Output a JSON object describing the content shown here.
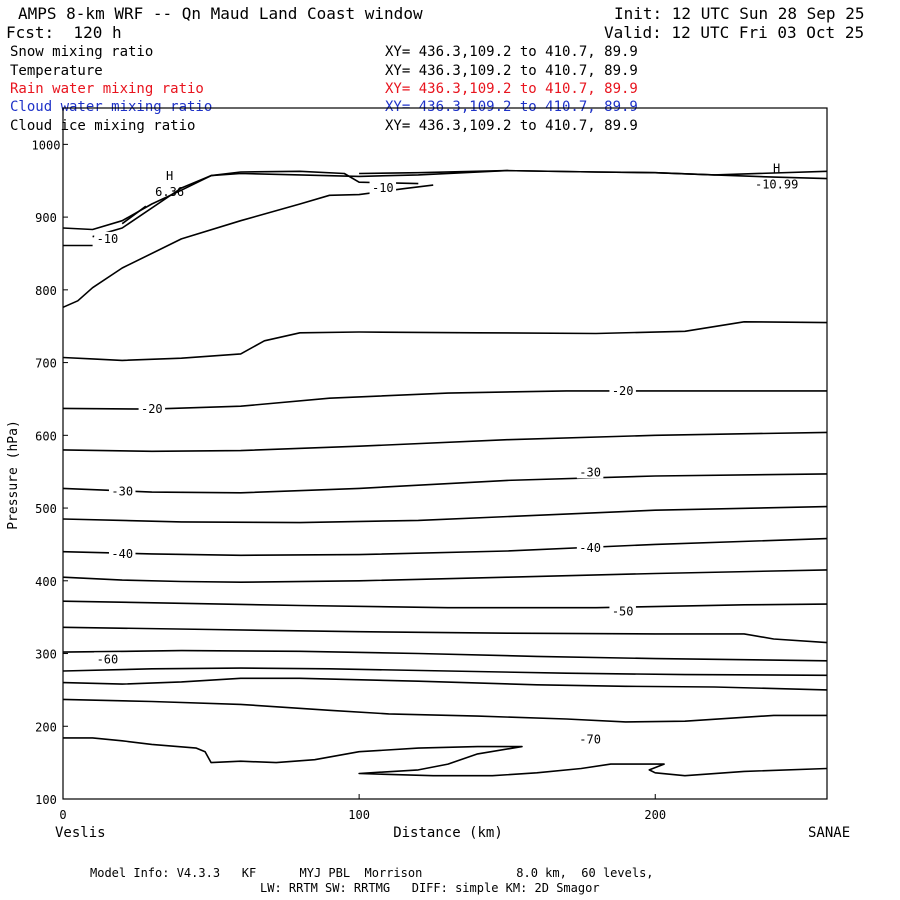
{
  "header": {
    "title": "AMPS 8-km WRF -- Qn Maud Land Coast window",
    "init": "Init: 12 UTC Sun 28 Sep 25",
    "forecast": "Fcst:  120 h",
    "valid": "Valid: 12 UTC Fri 03 Oct 25"
  },
  "fields": [
    {
      "name": "Snow mixing ratio",
      "xy": "XY= 436.3,109.2 to 410.7, 89.9",
      "color": "#000000"
    },
    {
      "name": "Temperature",
      "xy": "XY= 436.3,109.2 to 410.7, 89.9",
      "color": "#000000"
    },
    {
      "name": "Rain water mixing ratio",
      "xy": "XY= 436.3,109.2 to 410.7, 89.9",
      "color": "#e8141e"
    },
    {
      "name": "Cloud water mixing ratio",
      "xy": "XY= 436.3,109.2 to 410.7, 89.9",
      "color": "#1e32c8"
    },
    {
      "name": "Cloud ice mixing ratio",
      "xy": "XY= 436.3,109.2 to 410.7, 89.9",
      "color": "#000000"
    }
  ],
  "footer": {
    "line1": "Model Info: V4.3.3   KF      MYJ PBL  Morrison             8.0 km,  60 levels,",
    "line2": "LW: RRTM SW: RRTMG   DIFF: simple KM: 2D Smagor"
  },
  "chart_data": {
    "type": "contour",
    "title": "",
    "xlabel": "Distance (km)",
    "ylabel": "Pressure (hPa)",
    "xlim": [
      0,
      258
    ],
    "ylim": [
      1050,
      100
    ],
    "x_ticks": [
      0,
      100,
      200
    ],
    "y_ticks": [
      100,
      200,
      300,
      400,
      500,
      600,
      700,
      800,
      900,
      1000
    ],
    "endpoints": {
      "left": "Veslis",
      "right": "SANAE"
    },
    "contour_labels": [
      {
        "text": "-70",
        "x": 178,
        "p": 182
      },
      {
        "text": "-60",
        "x": 15,
        "p": 292
      },
      {
        "text": "-50",
        "x": 189,
        "p": 358
      },
      {
        "text": "-40",
        "x": 20,
        "p": 437
      },
      {
        "text": "-40",
        "x": 178,
        "p": 445
      },
      {
        "text": "-30",
        "x": 20,
        "p": 523
      },
      {
        "text": "-30",
        "x": 178,
        "p": 549
      },
      {
        "text": "-20",
        "x": 30,
        "p": 636
      },
      {
        "text": "-20",
        "x": 189,
        "p": 661
      },
      {
        "text": "-10",
        "x": 15,
        "p": 870
      },
      {
        "text": "-10",
        "x": 108,
        "p": 940
      }
    ],
    "extrema": [
      {
        "text": "H",
        "value": "6.36",
        "x": 36,
        "p": 940
      },
      {
        "text": "H",
        "value": "-10.99",
        "x": 241,
        "p": 950
      }
    ],
    "isotherms": [
      {
        "x": [
          0,
          10,
          20,
          30,
          45,
          48,
          50,
          60,
          72,
          85,
          100,
          120,
          140,
          155,
          140,
          130,
          120,
          100,
          125,
          145,
          160,
          175,
          185,
          195,
          203,
          198,
          200,
          210,
          230,
          258
        ],
        "p": [
          184,
          184,
          180,
          175,
          170,
          165,
          150,
          152,
          150,
          154,
          165,
          170,
          172,
          172,
          162,
          148,
          140,
          135,
          132,
          132,
          136,
          142,
          148,
          148,
          148,
          140,
          136,
          132,
          138,
          142
        ]
      },
      {
        "x": [
          0,
          30,
          60,
          90,
          110,
          140,
          170,
          190,
          210,
          240,
          258
        ],
        "p": [
          237,
          234,
          230,
          222,
          217,
          214,
          210,
          206,
          207,
          215,
          215
        ]
      },
      {
        "x": [
          0,
          20,
          40,
          60,
          80,
          120,
          160,
          190,
          220,
          258
        ],
        "p": [
          260,
          258,
          261,
          266,
          266,
          262,
          257,
          255,
          254,
          250
        ]
      },
      {
        "x": [
          0,
          30,
          60,
          90,
          130,
          170,
          210,
          258
        ],
        "p": [
          276,
          279,
          280,
          279,
          276,
          273,
          271,
          270
        ]
      },
      {
        "x": [
          0,
          40,
          80,
          120,
          160,
          200,
          258
        ],
        "p": [
          302,
          304,
          303,
          300,
          296,
          293,
          290
        ]
      },
      {
        "x": [
          0,
          50,
          100,
          150,
          200,
          230,
          240,
          258
        ],
        "p": [
          336,
          333,
          330,
          328,
          327,
          327,
          320,
          315
        ]
      },
      {
        "x": [
          0,
          40,
          80,
          130,
          180,
          230,
          258
        ],
        "p": [
          372,
          369,
          366,
          363,
          363,
          367,
          368
        ]
      },
      {
        "x": [
          0,
          20,
          40,
          60,
          100,
          150,
          200,
          258
        ],
        "p": [
          405,
          401,
          399,
          398,
          400,
          405,
          410,
          415
        ]
      },
      {
        "x": [
          0,
          30,
          60,
          100,
          150,
          200,
          258
        ],
        "p": [
          440,
          437,
          435,
          436,
          441,
          450,
          458
        ]
      },
      {
        "x": [
          0,
          40,
          80,
          120,
          160,
          200,
          258
        ],
        "p": [
          485,
          481,
          480,
          483,
          490,
          497,
          502
        ]
      },
      {
        "x": [
          0,
          30,
          60,
          100,
          150,
          200,
          258
        ],
        "p": [
          527,
          522,
          521,
          527,
          538,
          544,
          547
        ]
      },
      {
        "x": [
          0,
          30,
          60,
          100,
          150,
          200,
          258
        ],
        "p": [
          580,
          578,
          579,
          585,
          594,
          600,
          604
        ]
      },
      {
        "x": [
          0,
          30,
          60,
          90,
          130,
          170,
          210,
          258
        ],
        "p": [
          637,
          636,
          640,
          651,
          658,
          661,
          661,
          661
        ]
      },
      {
        "x": [
          0,
          10,
          20,
          40,
          60,
          68,
          80,
          100,
          140,
          180,
          210,
          230,
          258
        ],
        "p": [
          707,
          705,
          703,
          706,
          712,
          730,
          741,
          742,
          741,
          740,
          743,
          756,
          755
        ]
      },
      {
        "x": [
          0,
          5,
          10,
          20,
          40,
          60,
          80,
          90,
          100,
          115,
          125
        ],
        "p": [
          776,
          785,
          803,
          830,
          870,
          895,
          918,
          930,
          931,
          939,
          944
        ]
      },
      {
        "x": [
          0,
          10,
          20,
          30,
          40,
          50,
          60,
          80,
          100,
          120,
          150,
          180,
          200,
          220,
          240,
          258
        ],
        "p": [
          885,
          883,
          895,
          918,
          937,
          957,
          960,
          958,
          956,
          958,
          964,
          962,
          961,
          958,
          955,
          953
        ]
      },
      {
        "x": [
          10,
          20,
          40,
          50,
          60,
          80,
          95,
          100,
          120
        ],
        "p": [
          873,
          885,
          940,
          957,
          962,
          963,
          960,
          948,
          946
        ]
      },
      {
        "x": [
          0,
          10
        ],
        "p": [
          861,
          861
        ]
      },
      {
        "x": [
          20,
          28
        ],
        "p": [
          891,
          915
        ]
      },
      {
        "x": [
          100,
          120,
          150,
          180,
          200,
          220,
          258
        ],
        "p": [
          960,
          961,
          964,
          962,
          961,
          958,
          963
        ]
      }
    ]
  }
}
